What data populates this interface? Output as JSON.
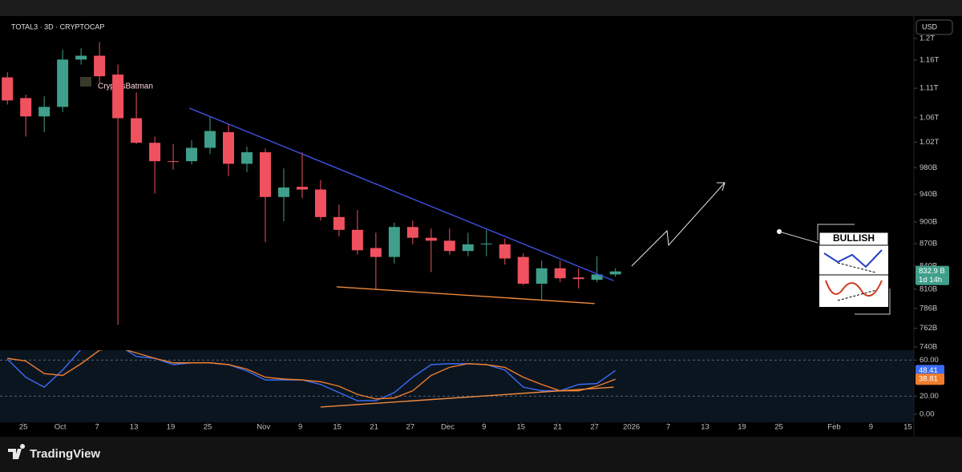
{
  "chart_data": [
    {
      "type": "candlestick",
      "title": "TOTAL3 · 3D · CRYPTOCAP",
      "log_scale": true,
      "grid": false,
      "up_color": "#3f9f8a",
      "down_color": "#f0515f",
      "x": [
        0,
        1,
        2,
        3,
        4,
        5,
        6,
        7,
        8,
        9,
        10,
        11,
        12,
        13,
        14,
        15,
        16,
        17,
        18,
        19,
        20,
        21,
        22,
        23,
        24,
        25,
        26,
        27,
        28,
        29,
        30,
        31,
        32,
        33
      ],
      "open": [
        1129,
        1093,
        1062,
        1078,
        1161,
        1168,
        1134,
        1059,
        1019,
        990,
        990,
        1011,
        1036,
        986,
        1004,
        936,
        951,
        947,
        907,
        889,
        864,
        852,
        893,
        878,
        874,
        860,
        869,
        869,
        852,
        817,
        837,
        825,
        822,
        829
      ],
      "high": [
        1138,
        1099,
        1096,
        1179,
        1182,
        1193,
        1152,
        1103,
        1029,
        1017,
        1023,
        1062,
        1049,
        1013,
        1010,
        979,
        1004,
        961,
        925,
        917,
        885,
        899,
        902,
        891,
        891,
        885,
        889,
        877,
        857,
        847,
        847,
        837,
        853,
        837
      ],
      "low": [
        1082,
        1029,
        1036,
        1069,
        1152,
        1117,
        766,
        1017,
        941,
        977,
        985,
        1001,
        967,
        973,
        872,
        901,
        934,
        902,
        880,
        855,
        809,
        843,
        869,
        832,
        855,
        853,
        853,
        842,
        815,
        797,
        819,
        811,
        819,
        826
      ],
      "close": [
        1089,
        1062,
        1078,
        1161,
        1168,
        1131,
        1059,
        1019,
        990,
        989,
        1011,
        1038,
        986,
        1004,
        936,
        950,
        947,
        907,
        889,
        861,
        852,
        893,
        878,
        874,
        860,
        869,
        870,
        850,
        817,
        837,
        824,
        823,
        829,
        832.9
      ],
      "xlim": [
        -0.4,
        49.2
      ],
      "ylim": [
        738,
        1243
      ],
      "yticks": [
        {
          "value": 1200,
          "label": "1.2T"
        },
        {
          "value": 1160,
          "label": "1.16T"
        },
        {
          "value": 1110,
          "label": "1.11T"
        },
        {
          "value": 1060,
          "label": "1.06T"
        },
        {
          "value": 1020,
          "label": "1.02T"
        },
        {
          "value": 980,
          "label": "980B"
        },
        {
          "value": 940,
          "label": "940B"
        },
        {
          "value": 900,
          "label": "900B"
        },
        {
          "value": 870,
          "label": "870B"
        },
        {
          "value": 840,
          "label": "840B"
        },
        {
          "value": 810,
          "label": "810B"
        },
        {
          "value": 786,
          "label": "786B"
        },
        {
          "value": 762,
          "label": "762B"
        },
        {
          "value": 740,
          "label": "740B"
        }
      ],
      "last_price": {
        "value": 832.9,
        "label": "832.9 B"
      },
      "countdown": "1d 14h",
      "trendlines": [
        {
          "color": "#3f51e0",
          "x": [
            9.87,
            32.9
          ],
          "y": [
            1076,
            821
          ]
        },
        {
          "color": "#f08a3c",
          "x": [
            17.87,
            31.87
          ],
          "y": [
            813,
            792
          ]
        }
      ]
    },
    {
      "type": "line",
      "grid": false,
      "band_lines": [
        20,
        60
      ],
      "x": [
        0,
        1,
        2,
        3,
        4,
        5,
        6,
        7,
        8,
        9,
        10,
        11,
        12,
        13,
        14,
        15,
        16,
        17,
        18,
        19,
        20,
        21,
        22,
        23,
        24,
        25,
        26,
        27,
        28,
        29,
        30,
        31,
        32,
        33
      ],
      "series": [
        {
          "color": "#3a6cf4",
          "values": [
            61,
            41,
            30,
            49,
            72,
            86,
            77,
            64,
            62,
            55,
            57,
            57,
            55,
            48,
            38,
            38,
            38,
            33,
            24,
            15,
            15,
            24,
            41,
            55,
            56,
            56,
            55,
            49,
            30,
            26,
            26,
            33,
            34,
            48.41
          ]
        },
        {
          "color": "#f07c2c",
          "values": [
            62,
            59,
            45,
            43,
            56,
            71,
            74,
            68,
            62,
            57,
            57,
            57,
            55,
            50,
            41,
            39,
            38,
            36,
            31,
            22,
            17,
            18,
            26,
            43,
            52,
            56,
            55,
            52,
            41,
            33,
            26,
            26,
            31,
            38.81
          ]
        }
      ],
      "xlim": [
        -0.4,
        49.2
      ],
      "ylim": [
        -9,
        71
      ],
      "yticks": [
        {
          "value": 60,
          "label": "60.00"
        },
        {
          "value": 20,
          "label": "20.00"
        },
        {
          "value": 0,
          "label": "0.00"
        }
      ],
      "xticks": [
        {
          "value": 0.87,
          "label": "25"
        },
        {
          "value": 2.87,
          "label": "Oct"
        },
        {
          "value": 4.87,
          "label": "7"
        },
        {
          "value": 6.87,
          "label": "13"
        },
        {
          "value": 8.87,
          "label": "19"
        },
        {
          "value": 10.87,
          "label": "25"
        },
        {
          "value": 13.9,
          "label": "Nov"
        },
        {
          "value": 15.9,
          "label": "9"
        },
        {
          "value": 17.9,
          "label": "15"
        },
        {
          "value": 19.9,
          "label": "21"
        },
        {
          "value": 21.87,
          "label": "27"
        },
        {
          "value": 23.9,
          "label": "Dec"
        },
        {
          "value": 25.87,
          "label": "9"
        },
        {
          "value": 27.87,
          "label": "15"
        },
        {
          "value": 29.87,
          "label": "21"
        },
        {
          "value": 31.87,
          "label": "27"
        },
        {
          "value": 33.87,
          "label": "2026"
        },
        {
          "value": 35.87,
          "label": "7"
        },
        {
          "value": 37.87,
          "label": "13"
        },
        {
          "value": 39.87,
          "label": "19"
        },
        {
          "value": 41.87,
          "label": "25"
        },
        {
          "value": 44.87,
          "label": "Feb"
        },
        {
          "value": 46.87,
          "label": "9"
        },
        {
          "value": 48.87,
          "label": "15"
        }
      ],
      "trendlines": [
        {
          "color": "#f08a3c",
          "x": [
            17,
            32.9
          ],
          "y": [
            7.9,
            30
          ]
        }
      ]
    }
  ],
  "ui": {
    "currency": "USD",
    "author": "CryptosBatman",
    "brand": "TradingView",
    "badge": "BULLISH"
  }
}
